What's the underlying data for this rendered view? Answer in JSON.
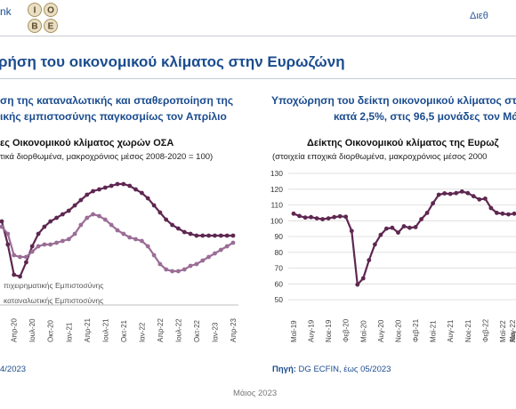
{
  "header": {
    "brand_fragment": "nk",
    "logo_text": "ΙΟΒΕ",
    "right_fragment": "Διεθ"
  },
  "title": "ρήση του οικονομικού κλίματος στην Ευρωζώνη",
  "left_panel": {
    "subtitle_line1": "ση της καταναλωτικής και σταθεροποίηση της",
    "subtitle_line2": "ικής εμπιστοσύνης παγκοσμίως τον Απρίλιο",
    "chart_title": "ες Οικονομικού κλίματος χωρών ΟΣΑ",
    "chart_note": "τικά διορθωμένα, μακροχρόνιος μέσος 2008-2020 = 100)",
    "source": "4/2023"
  },
  "right_panel": {
    "subtitle_line1": "Υποχώρηση του δείκτη οικονομικού κλίματος στ",
    "subtitle_line2": "κατά 2,5%, στις 96,5 μονάδες τον Μά",
    "chart_title": "Δείκτης Οικονομικού κλίματος της Ευρωζ",
    "chart_note": "(στοιχεία εποχικά διορθωμένα, μακροχρόνιος μέσος 2000",
    "source_label": "Πηγή:",
    "source_value": " DG ECFIN, έως 05/2023"
  },
  "footer": "Μάιος 2023",
  "colors": {
    "title_blue": "#1b4c8e",
    "series_dark": "#5e2750",
    "series_light": "#9a6d96",
    "grid": "#d9d9d9"
  },
  "chart_data": [
    {
      "type": "line",
      "title": "ες Οικονομικού κλίματος χωρών ΟΣΑ",
      "x": [
        "Φεβ-20",
        "Μαρ-20",
        "Απρ-20",
        "Μαϊ-20",
        "Ιουν-20",
        "Ιουλ-20",
        "Αυγ-20",
        "Σεπ-20",
        "Οκτ-20",
        "Νοε-20",
        "Δεκ-20",
        "Ιαν-21",
        "Φεβ-21",
        "Μαρ-21",
        "Απρ-21",
        "Μαϊ-21",
        "Ιουν-21",
        "Ιουλ-21",
        "Αυγ-21",
        "Σεπ-21",
        "Οκτ-21",
        "Νοε-21",
        "Δεκ-21",
        "Ιαν-22",
        "Φεβ-22",
        "Μαρ-22",
        "Απρ-22",
        "Μαϊ-22",
        "Ιουν-22",
        "Ιουλ-22",
        "Αυγ-22",
        "Σεπ-22",
        "Οκτ-22",
        "Νοε-22",
        "Δεκ-22",
        "Ιαν-23",
        "Φεβ-23",
        "Μαρ-23",
        "Απρ-23"
      ],
      "x_tick_labels": [
        "Απρ-20",
        "Ιουλ-20",
        "Οκτ-20",
        "Ιαν-21",
        "Απρ-21",
        "Ιουλ-21",
        "Οκτ-21",
        "Ιαν-22",
        "Απρ-22",
        "Ιουλ-22",
        "Οκτ-22",
        "Ιαν-23",
        "Απρ-23"
      ],
      "ylim": [
        96,
        103
      ],
      "series": [
        {
          "name": "πιχειρηματικής Εμπιστοσύνης",
          "color": "#5e2750",
          "values": [
            100.3,
            99.0,
            97.3,
            97.2,
            98.0,
            98.9,
            99.6,
            100.0,
            100.3,
            100.5,
            100.7,
            100.9,
            101.2,
            101.5,
            101.8,
            102.0,
            102.1,
            102.2,
            102.3,
            102.4,
            102.4,
            102.3,
            102.1,
            101.9,
            101.6,
            101.2,
            100.8,
            100.4,
            100.1,
            99.9,
            99.7,
            99.6,
            99.5,
            99.5,
            99.5,
            99.5,
            99.5,
            99.5,
            99.5
          ]
        },
        {
          "name": "καταναλωτικής Εμπιστοσύνης",
          "color": "#9a6d96",
          "values": [
            100.0,
            99.6,
            98.4,
            98.3,
            98.3,
            98.6,
            98.9,
            99.0,
            99.0,
            99.1,
            99.2,
            99.3,
            99.6,
            100.1,
            100.5,
            100.7,
            100.6,
            100.4,
            100.1,
            99.8,
            99.6,
            99.4,
            99.3,
            99.2,
            98.9,
            98.4,
            97.9,
            97.6,
            97.5,
            97.5,
            97.6,
            97.8,
            97.9,
            98.1,
            98.3,
            98.5,
            98.7,
            98.9,
            99.1
          ]
        }
      ]
    },
    {
      "type": "line",
      "title": "Δείκτης Οικονομικού κλίματος της Ευρωζ",
      "x": [
        "Μαϊ-19",
        "Ιουν-19",
        "Ιουλ-19",
        "Αυγ-19",
        "Σεπ-19",
        "Οκτ-19",
        "Νοε-19",
        "Δεκ-19",
        "Ιαν-20",
        "Φεβ-20",
        "Μαρ-20",
        "Απρ-20",
        "Μαϊ-20",
        "Ιουν-20",
        "Ιουλ-20",
        "Αυγ-20",
        "Σεπ-20",
        "Οκτ-20",
        "Νοε-20",
        "Δεκ-20",
        "Ιαν-21",
        "Φεβ-21",
        "Μαρ-21",
        "Απρ-21",
        "Μαϊ-21",
        "Ιουν-21",
        "Ιουλ-21",
        "Αυγ-21",
        "Σεπ-21",
        "Οκτ-21",
        "Νοε-21",
        "Δεκ-21",
        "Ιαν-22",
        "Φεβ-22",
        "Μαρ-22",
        "Απρ-22",
        "Μαϊ-22",
        "Ιουν-22",
        "Ιουλ-22"
      ],
      "x_tick_labels": [
        "Μαϊ-19",
        "Αυγ-19",
        "Νοε-19",
        "Φεβ-20",
        "Μαϊ-20",
        "Αυγ-20",
        "Νοε-20",
        "Φεβ-21",
        "Μαϊ-21",
        "Αυγ-21",
        "Νοε-21",
        "Φεβ-22",
        "Μαϊ-22",
        "Αυγ-22",
        "Μα"
      ],
      "y_ticks": [
        50,
        60,
        70,
        80,
        90,
        100,
        110,
        120,
        130
      ],
      "ylim": [
        50,
        130
      ],
      "series": [
        {
          "name": "",
          "color": "#5e2750",
          "values": [
            104.5,
            103,
            102,
            102.3,
            101.5,
            101,
            101.5,
            102.3,
            102.8,
            102.5,
            93.5,
            59.5,
            63.5,
            75,
            85,
            91,
            95,
            95.5,
            92.5,
            96.5,
            95.5,
            96,
            101,
            105,
            111,
            116.5,
            117.3,
            117,
            117.5,
            118.5,
            117.5,
            115.5,
            113.5,
            114,
            108,
            105,
            104.5,
            104,
            104.5
          ]
        }
      ]
    }
  ]
}
